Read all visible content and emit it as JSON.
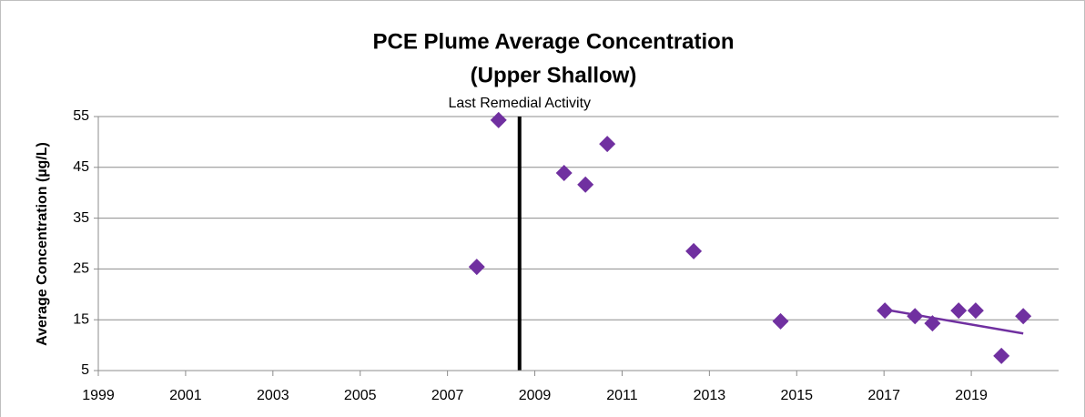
{
  "chart_data": {
    "type": "scatter",
    "title": [
      "PCE Plume Average Concentration",
      "(Upper Shallow)"
    ],
    "y_label": "Average Concentration (µg/L)",
    "x": [
      2007.67,
      2008.17,
      2009.67,
      2010.16,
      2010.66,
      2012.64,
      2014.63,
      2017.02,
      2017.71,
      2018.11,
      2018.71,
      2019.1,
      2019.69,
      2020.19
    ],
    "values": [
      25.4,
      54.3,
      43.9,
      41.6,
      49.6,
      28.5,
      14.7,
      16.8,
      15.7,
      14.3,
      16.8,
      16.8,
      7.9,
      15.7
    ],
    "color": "#7030a0",
    "trendline": {
      "x": [
        2017.02,
        2020.19
      ],
      "values": [
        17.0,
        12.3
      ]
    },
    "vline": {
      "x": 2008.65,
      "label": "Last Remedial Activity"
    },
    "xlim": [
      1999,
      2021
    ],
    "xticks": [
      1999,
      2001,
      2003,
      2005,
      2007,
      2009,
      2011,
      2013,
      2015,
      2017,
      2019
    ],
    "ylim": [
      5,
      55
    ],
    "yticks": [
      5,
      15,
      25,
      35,
      45,
      55
    ],
    "grid": true
  }
}
